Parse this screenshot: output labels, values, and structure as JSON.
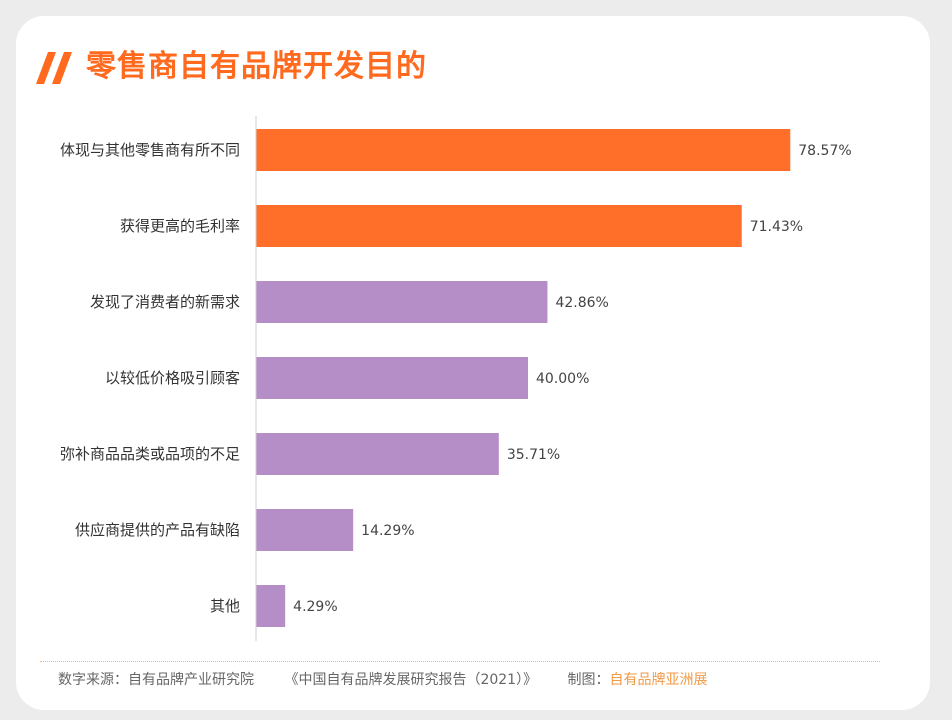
{
  "title": "零售商自有品牌开发目的",
  "colors": {
    "title": "#ff6a1f",
    "bar_highlight": "#ff6f2a",
    "bar_normal": "#b58ec7",
    "footer_accent": "#f29a46"
  },
  "chart_data": {
    "type": "bar",
    "orientation": "horizontal",
    "title": "零售商自有品牌开发目的",
    "categories": [
      "体现与其他零售商有所不同",
      "获得更高的毛利率",
      "发现了消费者的新需求",
      "以较低价格吸引顾客",
      "弥补商品品类或品项的不足",
      "供应商提供的产品有缺陷",
      "其他"
    ],
    "values": [
      78.57,
      71.43,
      42.86,
      40.0,
      35.71,
      14.29,
      4.29
    ],
    "value_labels": [
      "78.57%",
      "71.43%",
      "42.86%",
      "40.00%",
      "35.71%",
      "14.29%",
      "4.29%"
    ],
    "highlight": [
      true,
      true,
      false,
      false,
      false,
      false,
      false
    ],
    "xlim": [
      0,
      100
    ],
    "grid": false,
    "legend": "none"
  },
  "footer": {
    "source_label": "数字来源：",
    "source_org": "自有品牌产业研究院",
    "report": "《中国自有品牌发展研究报告（2021）》",
    "maker_label": "制图：",
    "maker": "自有品牌亚洲展"
  }
}
